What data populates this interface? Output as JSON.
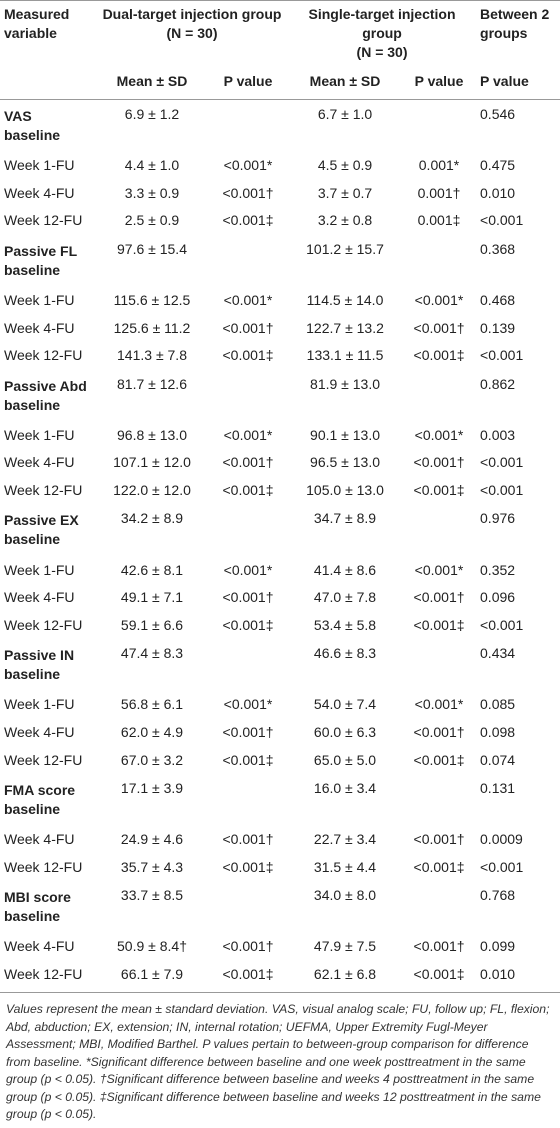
{
  "header": {
    "columns": [
      {
        "title": "Measured variable"
      },
      {
        "title": "Dual-target injection group",
        "n": "(N = 30)"
      },
      {
        "title": "Single-target injection group",
        "n": "(N = 30)"
      },
      {
        "title": "Between 2 groups"
      }
    ],
    "subcolumns": [
      "Mean ± SD",
      "P value",
      "Mean ± SD",
      "P value",
      "P value"
    ]
  },
  "table": {
    "groups": [
      {
        "name": "VAS",
        "rows": [
          [
            "baseline",
            "6.9 ± 1.2",
            "",
            "6.7 ± 1.0",
            "",
            "0.546"
          ],
          [
            "Week 1-FU",
            "4.4 ± 1.0",
            "<0.001*",
            "4.5 ± 0.9",
            "0.001*",
            "0.475"
          ],
          [
            "Week 4-FU",
            "3.3 ± 0.9",
            "<0.001†",
            "3.7 ± 0.7",
            "0.001†",
            "0.010"
          ],
          [
            "Week 12-FU",
            "2.5 ± 0.9",
            "<0.001‡",
            "3.2 ± 0.8",
            "0.001‡",
            "<0.001"
          ]
        ]
      },
      {
        "name": "Passive FL",
        "rows": [
          [
            "baseline",
            "97.6 ± 15.4",
            "",
            "101.2 ± 15.7",
            "",
            "0.368"
          ],
          [
            "Week 1-FU",
            "115.6 ± 12.5",
            "<0.001*",
            "114.5 ± 14.0",
            "<0.001*",
            "0.468"
          ],
          [
            "Week 4-FU",
            "125.6 ± 11.2",
            "<0.001†",
            "122.7 ± 13.2",
            "<0.001†",
            "0.139"
          ],
          [
            "Week 12-FU",
            "141.3 ± 7.8",
            "<0.001‡",
            "133.1 ± 11.5",
            "<0.001‡",
            "<0.001"
          ]
        ]
      },
      {
        "name": "Passive Abd",
        "rows": [
          [
            "baseline",
            "81.7 ± 12.6",
            "",
            "81.9 ± 13.0",
            "",
            "0.862"
          ],
          [
            "Week 1-FU",
            "96.8 ± 13.0",
            "<0.001*",
            "90.1 ± 13.0",
            "<0.001*",
            "0.003"
          ],
          [
            "Week 4-FU",
            "107.1 ± 12.0",
            "<0.001†",
            "96.5 ± 13.0",
            "<0.001†",
            "<0.001"
          ],
          [
            "Week 12-FU",
            "122.0 ± 12.0",
            "<0.001‡",
            "105.0 ± 13.0",
            "<0.001‡",
            "<0.001"
          ]
        ]
      },
      {
        "name": "Passive EX",
        "rows": [
          [
            "baseline",
            "34.2 ± 8.9",
            "",
            "34.7 ± 8.9",
            "",
            "0.976"
          ],
          [
            "Week 1-FU",
            "42.6 ± 8.1",
            "<0.001*",
            "41.4 ± 8.6",
            "<0.001*",
            "0.352"
          ],
          [
            "Week 4-FU",
            "49.1 ± 7.1",
            "<0.001†",
            "47.0 ± 7.8",
            "<0.001†",
            "0.096"
          ],
          [
            "Week 12-FU",
            "59.1 ± 6.6",
            "<0.001‡",
            "53.4 ± 5.8",
            "<0.001‡",
            "<0.001"
          ]
        ]
      },
      {
        "name": "Passive IN",
        "rows": [
          [
            "baseline",
            "47.4 ± 8.3",
            "",
            "46.6 ± 8.3",
            "",
            "0.434"
          ],
          [
            "Week 1-FU",
            "56.8 ± 6.1",
            "<0.001*",
            "54.0 ± 7.4",
            "<0.001*",
            "0.085"
          ],
          [
            "Week 4-FU",
            "62.0 ± 4.9",
            "<0.001†",
            "60.0 ± 6.3",
            "<0.001†",
            "0.098"
          ],
          [
            "Week 12-FU",
            "67.0 ± 3.2",
            "<0.001‡",
            "65.0 ± 5.0",
            "<0.001‡",
            "0.074"
          ]
        ]
      },
      {
        "name": "FMA score",
        "rows": [
          [
            "baseline",
            "17.1 ± 3.9",
            "",
            "16.0 ± 3.4",
            "",
            "0.131"
          ],
          [
            "Week 4-FU",
            "24.9 ± 4.6",
            "<0.001†",
            "22.7 ± 3.4",
            "<0.001†",
            "0.0009"
          ],
          [
            "Week 12-FU",
            "35.7 ± 4.3",
            "<0.001‡",
            "31.5 ± 4.4",
            "<0.001‡",
            "<0.001"
          ]
        ]
      },
      {
        "name": "MBI score",
        "rows": [
          [
            "baseline",
            "33.7 ± 8.5",
            "",
            "34.0 ± 8.0",
            "",
            "0.768"
          ],
          [
            "Week 4-FU",
            "50.9 ± 8.4†",
            "<0.001†",
            "47.9 ± 7.5",
            "<0.001†",
            "0.099"
          ],
          [
            "Week 12-FU",
            "66.1 ± 7.9",
            "<0.001‡",
            "62.1 ± 6.8",
            "<0.001‡",
            "0.010"
          ]
        ]
      }
    ]
  },
  "footnote": "Values represent the mean ± standard deviation. VAS, visual analog scale; FU, follow up; FL, flexion; Abd, abduction; EX, extension; IN, internal rotation; UEFMA, Upper Extremity Fugl-Meyer Assessment; MBI, Modified Barthel. P values pertain to between-group comparison for difference from baseline. *Significant difference between baseline and one week posttreatment in the same group (p < 0.05). †Significant difference between baseline and weeks 4 posttreatment in the same group (p < 0.05). ‡Significant difference between baseline and weeks 12 posttreatment in the same group (p < 0.05)."
}
